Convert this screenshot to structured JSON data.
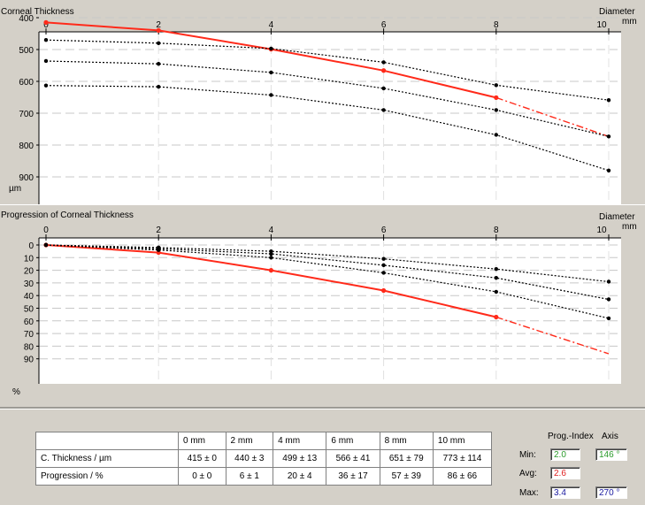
{
  "top_chart": {
    "title": "Corneal Thickness",
    "diameter_label": "Diameter",
    "unit_x": "mm",
    "x_ticks": [
      "0",
      "2",
      "4",
      "6",
      "8",
      "10"
    ],
    "y_ticks": [
      "400",
      "500",
      "600",
      "700",
      "800",
      "900"
    ],
    "y_unit": "µm"
  },
  "bottom_chart": {
    "title": "Progression of Corneal Thickness",
    "diameter_label": "Diameter",
    "unit_x": "mm",
    "x_ticks": [
      "0",
      "2",
      "4",
      "6",
      "8",
      "10"
    ],
    "y_ticks": [
      "0",
      "10",
      "20",
      "30",
      "40",
      "50",
      "60",
      "70",
      "80",
      "90"
    ],
    "y_unit": "%"
  },
  "chart_data": [
    {
      "type": "line",
      "title": "Corneal Thickness",
      "xlabel": "Diameter mm",
      "ylabel": "µm",
      "xlim": [
        0,
        10
      ],
      "ylim": [
        400,
        950
      ],
      "y_inverted": true,
      "grid": true,
      "x": [
        0,
        2,
        4,
        6,
        8,
        10
      ],
      "series": [
        {
          "name": "",
          "color": "#ff2a1a",
          "values": [
            415,
            440,
            499,
            566,
            651,
            773
          ],
          "dashed_from_index": 4
        },
        {
          "name": "",
          "color": "#000000",
          "values": [
            415,
            440,
            499,
            566,
            651,
            773
          ],
          "style": "dotted",
          "role": "mean"
        },
        {
          "name": "",
          "color": "#000000",
          "values": [
            415,
            437,
            486,
            525,
            572,
            659
          ],
          "style": "dotted",
          "role": "low"
        },
        {
          "name": "",
          "color": "#000000",
          "values": [
            415,
            443,
            512,
            607,
            730,
            887
          ],
          "style": "dotted",
          "role": "high"
        },
        {
          "name": "",
          "color": "#000000",
          "values": [
            470,
            480,
            497,
            540,
            612,
            659
          ],
          "style": "dotted",
          "role": "curve-1"
        },
        {
          "name": "",
          "color": "#000000",
          "values": [
            536,
            545,
            572,
            622,
            690,
            773
          ],
          "style": "dotted",
          "role": "curve-2"
        },
        {
          "name": "",
          "color": "#000000",
          "values": [
            613,
            617,
            643,
            690,
            768,
            880
          ],
          "style": "dotted",
          "role": "curve-3"
        }
      ]
    },
    {
      "type": "line",
      "title": "Progression of Corneal Thickness",
      "xlabel": "Diameter mm",
      "ylabel": "%",
      "xlim": [
        0,
        10
      ],
      "ylim": [
        0,
        100
      ],
      "y_inverted": true,
      "grid": true,
      "x": [
        0,
        2,
        4,
        6,
        8,
        10
      ],
      "series": [
        {
          "name": "",
          "color": "#ff2a1a",
          "values": [
            0,
            6,
            20,
            36,
            57,
            86
          ],
          "dashed_from_index": 4
        },
        {
          "name": "",
          "color": "#000000",
          "values": [
            0,
            2,
            5,
            11,
            19,
            29
          ],
          "style": "dotted"
        },
        {
          "name": "",
          "color": "#000000",
          "values": [
            0,
            3,
            7,
            16,
            26,
            43
          ],
          "style": "dotted"
        },
        {
          "name": "",
          "color": "#000000",
          "values": [
            0,
            4,
            10,
            22,
            37,
            58
          ],
          "style": "dotted"
        }
      ]
    }
  ],
  "table": {
    "headers": [
      "",
      "0 mm",
      "2 mm",
      "4 mm",
      "6 mm",
      "8 mm",
      "10 mm"
    ],
    "rows": [
      [
        "C. Thickness / µm",
        "415 ± 0",
        "440 ± 3",
        "499 ± 13",
        "566 ± 41",
        "651 ± 79",
        "773 ± 114"
      ],
      [
        "Progression / %",
        "0 ± 0",
        "6 ± 1",
        "20 ± 4",
        "36 ± 17",
        "57 ± 39",
        "86 ± 66"
      ]
    ]
  },
  "prog_index": {
    "header_prog": "Prog.-Index",
    "header_axis": "Axis",
    "min_label": "Min:",
    "avg_label": "Avg:",
    "max_label": "Max:",
    "min_value": "2.0",
    "avg_value": "2.6",
    "max_value": "3.4",
    "min_axis": "146 °",
    "max_axis": "270 °",
    "min_color": "#2a9a2a",
    "avg_color": "#e02020",
    "max_color": "#1a1aa0",
    "axis_min_color": "#2a9a2a",
    "axis_max_color": "#1a1aa0"
  }
}
